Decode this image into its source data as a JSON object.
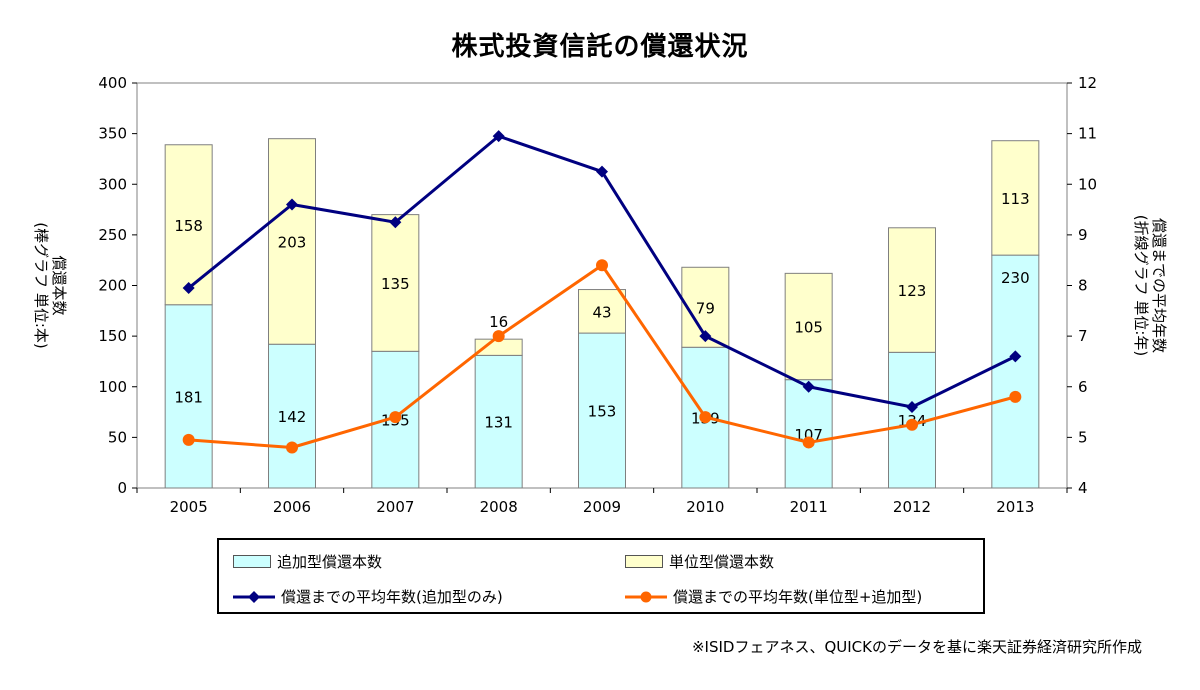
{
  "chart_data": {
    "type": "bar",
    "title": "株式投資信託の償還状況",
    "categories": [
      "2005",
      "2006",
      "2007",
      "2008",
      "2009",
      "2010",
      "2011",
      "2012",
      "2013"
    ],
    "bar_series": [
      {
        "name": "追加型償還本数",
        "values": [
          181,
          142,
          135,
          131,
          153,
          139,
          107,
          134,
          230
        ],
        "color": "#ccffff",
        "label_color": "#000080"
      },
      {
        "name": "単位型償還本数",
        "values": [
          158,
          203,
          135,
          16,
          43,
          79,
          105,
          123,
          113
        ],
        "color": "#ffffcc",
        "label_color": "#333333"
      }
    ],
    "line_series": [
      {
        "name": "償還までの平均年数(追加型のみ)",
        "axis": "right",
        "values": [
          7.95,
          9.6,
          9.25,
          10.95,
          10.25,
          7.0,
          6.0,
          5.6,
          6.6
        ],
        "color": "#000080",
        "marker": "diamond"
      },
      {
        "name": "償還までの平均年数(単位型+追加型)",
        "axis": "right",
        "values": [
          4.95,
          4.8,
          5.4,
          7.0,
          8.4,
          5.4,
          4.9,
          5.25,
          5.8
        ],
        "color": "#ff6600",
        "marker": "circle"
      }
    ],
    "y_left": {
      "label": "償還本数\n(棒グラフ 単位:本)",
      "ylim": [
        0,
        400
      ],
      "ticks": [
        "0",
        "50",
        "100",
        "150",
        "200",
        "250",
        "300",
        "350",
        "400"
      ]
    },
    "y_right": {
      "label": "償還までの平均年数\n(折線グラフ 単位:年)",
      "ylim": [
        4,
        12
      ],
      "ticks": [
        "4",
        "5",
        "6",
        "7",
        "8",
        "9",
        "10",
        "11",
        "12"
      ]
    },
    "legend_position": "bottom",
    "grid": false
  },
  "legend": {
    "items": [
      "追加型償還本数",
      "単位型償還本数",
      "償還までの平均年数(追加型のみ)",
      "償還までの平均年数(単位型+追加型)"
    ]
  },
  "source_note": "※ISIDフェアネス、QUICKのデータを基に楽天証券経済研究所作成"
}
